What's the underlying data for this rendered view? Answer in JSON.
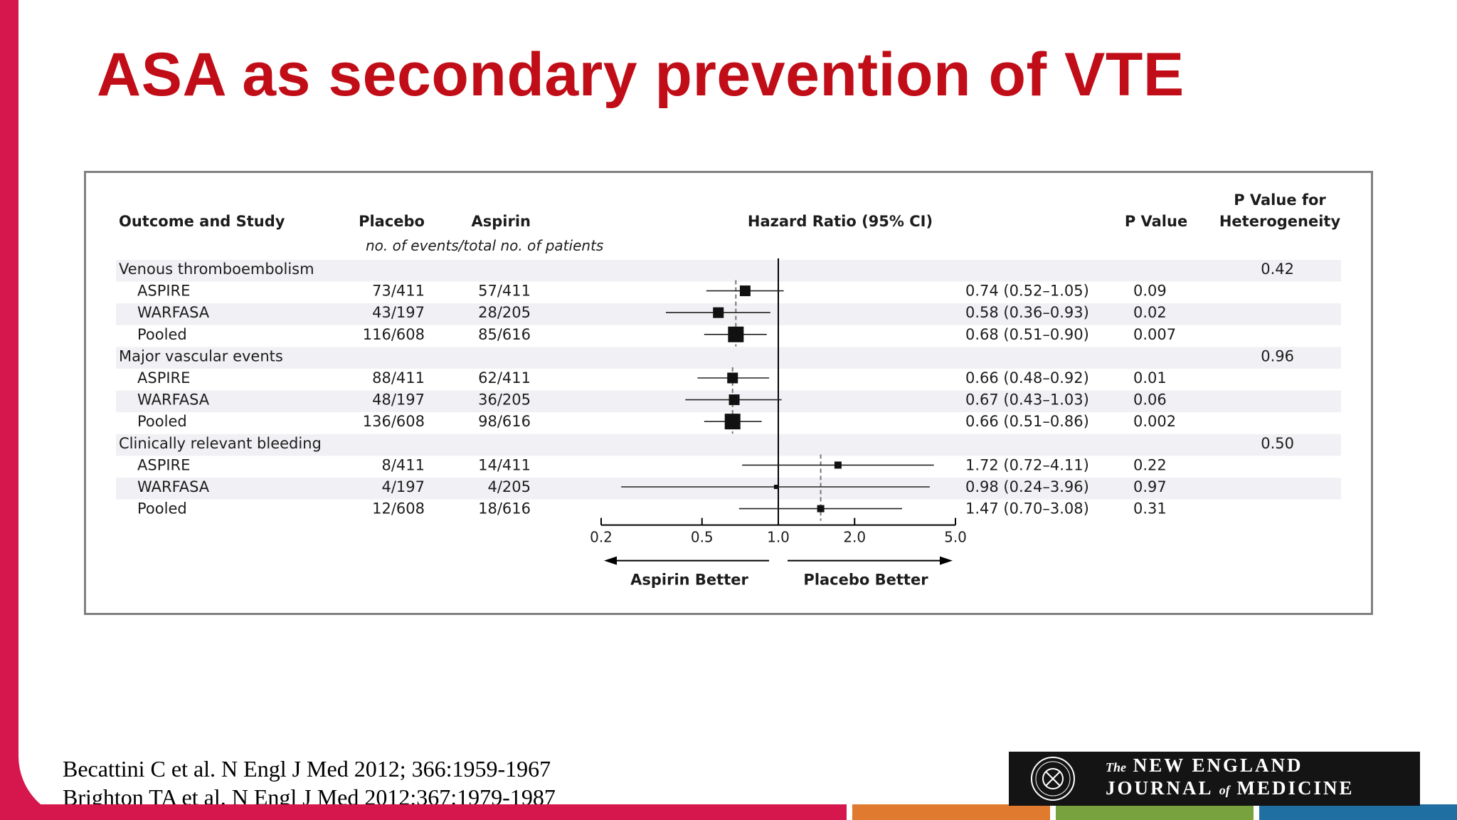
{
  "title": "ASA as secondary prevention of VTE",
  "colors": {
    "accent": "#d6174d",
    "title": "#c00d17",
    "stripe_orange": "#e07a2e",
    "stripe_green": "#78a23e",
    "stripe_blue": "#1f6fa3",
    "row_shade": "#f1f1f5"
  },
  "chart_data": {
    "type": "forest",
    "headers": {
      "study": "Outcome and Study",
      "placebo": "Placebo",
      "aspirin": "Aspirin",
      "subheader": "no. of events/total no. of patients",
      "hr": "Hazard Ratio (95% CI)",
      "p": "P Value",
      "phet_line1": "P Value for",
      "phet_line2": "Heterogeneity"
    },
    "x_scale": "log",
    "xlim": [
      0.2,
      5.0
    ],
    "ticks": [
      "0.2",
      "0.5",
      "1.0",
      "2.0",
      "5.0"
    ],
    "reference_line": 1.0,
    "direction_labels": {
      "left": "Aspirin Better",
      "right": "Placebo Better"
    },
    "groups": [
      {
        "name": "Venous thromboembolism",
        "p_het": "0.42",
        "rows": [
          {
            "study": "ASPIRE",
            "placebo": "73/411",
            "aspirin": "57/411",
            "hr": 0.74,
            "lo": 0.52,
            "hi": 1.05,
            "ci_text": "0.74 (0.52–1.05)",
            "p": "0.09"
          },
          {
            "study": "WARFASA",
            "placebo": "43/197",
            "aspirin": "28/205",
            "hr": 0.58,
            "lo": 0.36,
            "hi": 0.93,
            "ci_text": "0.58 (0.36–0.93)",
            "p": "0.02"
          },
          {
            "study": "Pooled",
            "placebo": "116/608",
            "aspirin": "85/616",
            "hr": 0.68,
            "lo": 0.51,
            "hi": 0.9,
            "ci_text": "0.68 (0.51–0.90)",
            "p": "0.007"
          }
        ]
      },
      {
        "name": "Major vascular events",
        "p_het": "0.96",
        "rows": [
          {
            "study": "ASPIRE",
            "placebo": "88/411",
            "aspirin": "62/411",
            "hr": 0.66,
            "lo": 0.48,
            "hi": 0.92,
            "ci_text": "0.66 (0.48–0.92)",
            "p": "0.01"
          },
          {
            "study": "WARFASA",
            "placebo": "48/197",
            "aspirin": "36/205",
            "hr": 0.67,
            "lo": 0.43,
            "hi": 1.03,
            "ci_text": "0.67 (0.43–1.03)",
            "p": "0.06"
          },
          {
            "study": "Pooled",
            "placebo": "136/608",
            "aspirin": "98/616",
            "hr": 0.66,
            "lo": 0.51,
            "hi": 0.86,
            "ci_text": "0.66 (0.51–0.86)",
            "p": "0.002"
          }
        ]
      },
      {
        "name": "Clinically relevant bleeding",
        "p_het": "0.50",
        "rows": [
          {
            "study": "ASPIRE",
            "placebo": "8/411",
            "aspirin": "14/411",
            "hr": 1.72,
            "lo": 0.72,
            "hi": 4.11,
            "ci_text": "1.72 (0.72–4.11)",
            "p": "0.22"
          },
          {
            "study": "WARFASA",
            "placebo": "4/197",
            "aspirin": "4/205",
            "hr": 0.98,
            "lo": 0.24,
            "hi": 3.96,
            "ci_text": "0.98 (0.24–3.96)",
            "p": "0.97"
          },
          {
            "study": "Pooled",
            "placebo": "12/608",
            "aspirin": "18/616",
            "hr": 1.47,
            "lo": 0.7,
            "hi": 3.08,
            "ci_text": "1.47 (0.70–3.08)",
            "p": "0.31"
          }
        ]
      }
    ]
  },
  "references": [
    "Becattini C et al. N Engl J Med 2012; 366:1959-1967",
    "Brighton TA et al. N Engl J Med 2012;367:1979-1987"
  ],
  "logo": {
    "line1_small": "The",
    "line1": "NEW ENGLAND",
    "line2_a": "JOURNAL",
    "line2_small": "of",
    "line2_b": "MEDICINE"
  }
}
